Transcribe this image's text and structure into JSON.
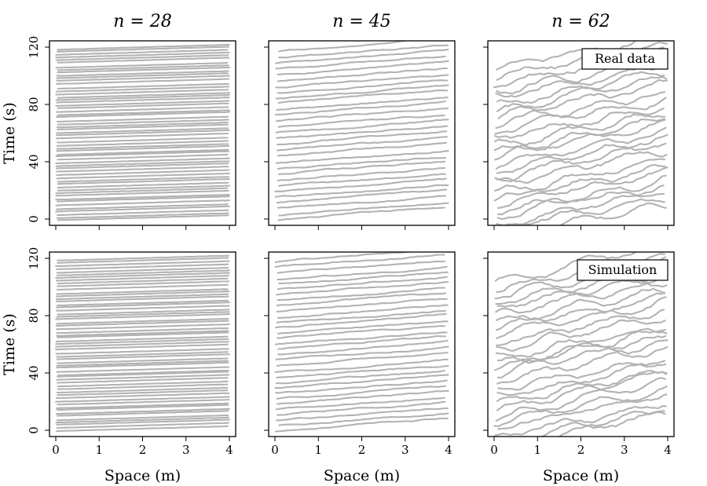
{
  "chart_data": [
    {
      "type": "line",
      "row_label": "Real data",
      "title": "n = 28",
      "density_n": 28,
      "xlabel": "",
      "ylabel": "Time (s)",
      "xlim": [
        0,
        4
      ],
      "ylim": [
        0,
        120
      ],
      "xticks": [
        "0",
        "1",
        "2",
        "3",
        "4"
      ],
      "yticks": [
        "0",
        "40",
        "80",
        "120"
      ],
      "trajectory_count": 58,
      "annotation": ""
    },
    {
      "type": "line",
      "row_label": "Real data",
      "title": "n = 45",
      "density_n": 45,
      "xlabel": "",
      "ylabel": "",
      "xlim": [
        0,
        4
      ],
      "ylim": [
        0,
        120
      ],
      "xticks": [
        "0",
        "1",
        "2",
        "3",
        "4"
      ],
      "yticks": [
        "0",
        "40",
        "80",
        "120"
      ],
      "trajectory_count": 30,
      "annotation": ""
    },
    {
      "type": "line",
      "row_label": "Real data",
      "title": "n = 62",
      "density_n": 62,
      "xlabel": "",
      "ylabel": "",
      "xlim": [
        0,
        4
      ],
      "ylim": [
        0,
        120
      ],
      "xticks": [
        "0",
        "1",
        "2",
        "3",
        "4"
      ],
      "yticks": [
        "0",
        "40",
        "80",
        "120"
      ],
      "trajectory_count": 26,
      "annotation": "Real data"
    },
    {
      "type": "line",
      "row_label": "Simulation",
      "title": "",
      "density_n": 28,
      "xlabel": "Space (m)",
      "ylabel": "Time (s)",
      "xlim": [
        0,
        4
      ],
      "ylim": [
        0,
        120
      ],
      "xticks": [
        "0",
        "1",
        "2",
        "3",
        "4"
      ],
      "yticks": [
        "0",
        "40",
        "80",
        "120"
      ],
      "trajectory_count": 58,
      "annotation": ""
    },
    {
      "type": "line",
      "row_label": "Simulation",
      "title": "",
      "density_n": 45,
      "xlabel": "Space (m)",
      "ylabel": "",
      "xlim": [
        0,
        4
      ],
      "ylim": [
        0,
        120
      ],
      "xticks": [
        "0",
        "1",
        "2",
        "3",
        "4"
      ],
      "yticks": [
        "0",
        "40",
        "80",
        "120"
      ],
      "trajectory_count": 32,
      "annotation": ""
    },
    {
      "type": "line",
      "row_label": "Simulation",
      "title": "",
      "density_n": 62,
      "xlabel": "Space (m)",
      "ylabel": "",
      "xlim": [
        0,
        4
      ],
      "ylim": [
        0,
        120
      ],
      "xticks": [
        "0",
        "1",
        "2",
        "3",
        "4"
      ],
      "yticks": [
        "0",
        "40",
        "80",
        "120"
      ],
      "trajectory_count": 26,
      "annotation": "Simulation"
    }
  ],
  "style": {
    "line_color": "#b3b3b3",
    "frame_color": "#000000"
  }
}
